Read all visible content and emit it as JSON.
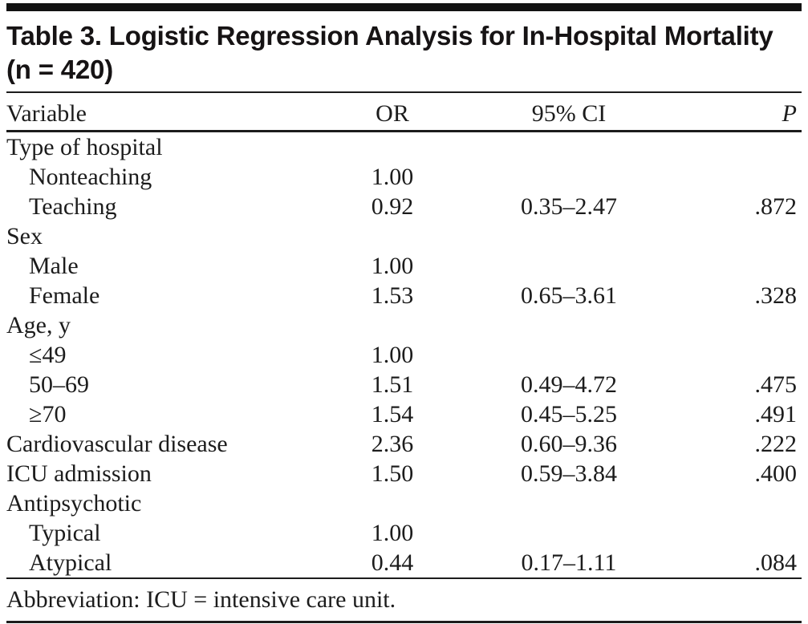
{
  "table": {
    "title_line1": "Table 3. Logistic Regression Analysis for In-Hospital Mortality",
    "title_line2": "(n = 420)",
    "columns": [
      "Variable",
      "OR",
      "95% CI",
      "P"
    ],
    "rows": [
      {
        "variable": "Type of hospital",
        "indent": false,
        "or": "",
        "ci": "",
        "p": ""
      },
      {
        "variable": "Nonteaching",
        "indent": true,
        "or": "1.00",
        "ci": "",
        "p": ""
      },
      {
        "variable": "Teaching",
        "indent": true,
        "or": "0.92",
        "ci": "0.35–2.47",
        "p": ".872"
      },
      {
        "variable": "Sex",
        "indent": false,
        "or": "",
        "ci": "",
        "p": ""
      },
      {
        "variable": "Male",
        "indent": true,
        "or": "1.00",
        "ci": "",
        "p": ""
      },
      {
        "variable": "Female",
        "indent": true,
        "or": "1.53",
        "ci": "0.65–3.61",
        "p": ".328"
      },
      {
        "variable": "Age, y",
        "indent": false,
        "or": "",
        "ci": "",
        "p": ""
      },
      {
        "variable": "≤49",
        "indent": true,
        "or": "1.00",
        "ci": "",
        "p": ""
      },
      {
        "variable": "50–69",
        "indent": true,
        "or": "1.51",
        "ci": "0.49–4.72",
        "p": ".475"
      },
      {
        "variable": "≥70",
        "indent": true,
        "or": "1.54",
        "ci": "0.45–5.25",
        "p": ".491"
      },
      {
        "variable": "Cardiovascular disease",
        "indent": false,
        "or": "2.36",
        "ci": "0.60–9.36",
        "p": ".222"
      },
      {
        "variable": "ICU admission",
        "indent": false,
        "or": "1.50",
        "ci": "0.59–3.84",
        "p": ".400"
      },
      {
        "variable": "Antipsychotic",
        "indent": false,
        "or": "",
        "ci": "",
        "p": ""
      },
      {
        "variable": "Typical",
        "indent": true,
        "or": "1.00",
        "ci": "",
        "p": ""
      },
      {
        "variable": "Atypical",
        "indent": true,
        "or": "0.44",
        "ci": "0.17–1.11",
        "p": ".084"
      }
    ],
    "footnote": "Abbreviation: ICU = intensive care unit.",
    "colors": {
      "text": "#1c1c1c",
      "rule": "#1c1c1c",
      "topbar": "#121212",
      "background": "#ffffff"
    }
  }
}
